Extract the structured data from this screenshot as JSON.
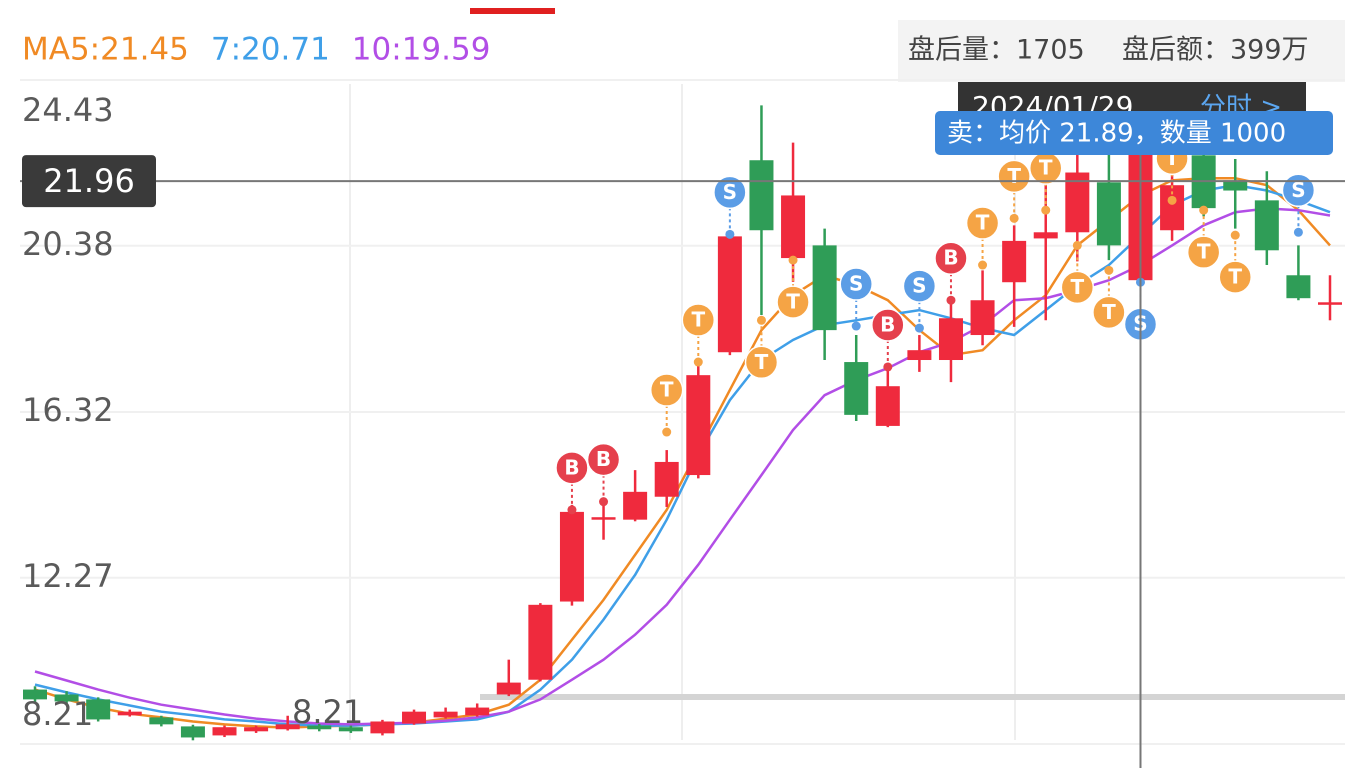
{
  "chart_data": {
    "type": "candlestick",
    "ylim": [
      8.21,
      24.43
    ],
    "yticks": [
      8.21,
      12.27,
      16.32,
      20.38,
      24.43
    ],
    "grid": true,
    "up_color": "#ef2a3d",
    "down_color": "#2f9d57",
    "open": [
      9.54,
      9.42,
      9.3,
      8.91,
      8.86,
      8.64,
      8.42,
      8.52,
      8.57,
      8.66,
      8.62,
      8.47,
      8.71,
      8.86,
      8.91,
      9.42,
      9.78,
      11.69,
      13.7,
      13.69,
      14.25,
      14.78,
      17.78,
      22.47,
      20.08,
      20.39,
      17.54,
      15.98,
      17.59,
      17.59,
      18.2,
      19.49,
      20.56,
      20.71,
      21.93,
      19.54,
      20.76,
      22.59,
      21.98,
      21.49,
      19.66,
      18.98
    ],
    "high": [
      9.62,
      9.5,
      9.35,
      9.05,
      8.9,
      8.68,
      8.66,
      8.66,
      8.9,
      8.7,
      8.66,
      8.8,
      9.05,
      9.1,
      9.2,
      10.27,
      11.65,
      14.05,
      14.13,
      14.9,
      15.39,
      17.46,
      20.71,
      23.81,
      22.9,
      20.8,
      18.2,
      17.46,
      18.2,
      19.05,
      19.78,
      20.88,
      22.71,
      22.71,
      22.71,
      23.32,
      22.4,
      23.0,
      22.5,
      22.2,
      20.39,
      19.66
    ],
    "low": [
      9.22,
      9.2,
      8.76,
      8.88,
      8.64,
      8.3,
      8.38,
      8.48,
      8.54,
      8.52,
      8.48,
      8.42,
      8.68,
      8.83,
      8.88,
      9.38,
      9.74,
      11.59,
      13.2,
      13.65,
      14.0,
      14.7,
      17.71,
      18.69,
      19.5,
      17.59,
      16.1,
      15.95,
      17.3,
      17.05,
      17.95,
      18.4,
      18.56,
      20.0,
      20.03,
      19.42,
      20.5,
      21.1,
      20.8,
      19.91,
      19.05,
      18.56
    ],
    "close": [
      9.3,
      9.25,
      8.81,
      9.0,
      8.69,
      8.37,
      8.62,
      8.62,
      8.69,
      8.57,
      8.52,
      8.76,
      9.0,
      9.0,
      9.1,
      9.71,
      11.61,
      13.88,
      13.75,
      14.37,
      15.1,
      17.22,
      20.61,
      20.76,
      21.61,
      18.32,
      16.25,
      16.95,
      17.83,
      18.61,
      19.05,
      20.5,
      20.71,
      22.17,
      20.39,
      23.2,
      21.86,
      21.3,
      21.73,
      20.27,
      19.1,
      19.0
    ],
    "series": [
      {
        "name": "MA5:21.45",
        "color": "#f08a24",
        "values": [
          9.54,
          9.3,
          9.1,
          8.95,
          8.86,
          8.76,
          8.69,
          8.64,
          8.61,
          8.64,
          8.66,
          8.69,
          8.73,
          8.83,
          8.93,
          9.17,
          9.78,
          10.76,
          11.73,
          12.83,
          13.93,
          15.39,
          16.86,
          18.32,
          19.17,
          19.66,
          19.42,
          19.05,
          18.32,
          17.71,
          17.83,
          18.56,
          19.17,
          20.39,
          21.0,
          21.61,
          21.98,
          22.03,
          22.03,
          21.86,
          21.25,
          20.39
        ]
      },
      {
        "name": "7:20.71",
        "color": "#3f9fe8",
        "values": [
          9.66,
          9.47,
          9.3,
          9.15,
          9.0,
          8.91,
          8.81,
          8.76,
          8.69,
          8.66,
          8.66,
          8.69,
          8.71,
          8.76,
          8.81,
          9.0,
          9.54,
          10.27,
          11.25,
          12.34,
          13.69,
          15.27,
          16.61,
          17.59,
          18.08,
          18.44,
          18.56,
          18.69,
          18.81,
          18.61,
          18.37,
          18.2,
          18.81,
          19.42,
          19.91,
          20.64,
          21.37,
          21.73,
          21.86,
          21.73,
          21.49,
          21.2
        ]
      },
      {
        "name": "10:19.59",
        "color": "#b24ee6",
        "values": [
          9.98,
          9.76,
          9.54,
          9.34,
          9.17,
          9.05,
          8.93,
          8.83,
          8.76,
          8.71,
          8.69,
          8.71,
          8.73,
          8.78,
          8.86,
          9.0,
          9.3,
          9.78,
          10.27,
          10.88,
          11.61,
          12.59,
          13.69,
          14.78,
          15.88,
          16.73,
          17.1,
          17.39,
          17.78,
          18.03,
          18.44,
          19.05,
          19.1,
          19.3,
          19.54,
          19.91,
          20.39,
          20.88,
          21.2,
          21.29,
          21.25,
          21.12
        ]
      }
    ],
    "signals": [
      null,
      null,
      null,
      null,
      null,
      null,
      null,
      null,
      null,
      null,
      null,
      null,
      null,
      null,
      null,
      null,
      null,
      "B",
      "B",
      null,
      "T",
      "T",
      "S",
      "T",
      "T",
      null,
      "S",
      "B",
      "S",
      "B",
      "T",
      "T",
      "T",
      "T",
      "T",
      "S",
      "T",
      "T",
      "T",
      null,
      "S",
      null
    ],
    "signal_prices": [
      null,
      null,
      null,
      null,
      null,
      null,
      null,
      null,
      null,
      null,
      null,
      null,
      null,
      null,
      null,
      null,
      null,
      13.93,
      14.13,
      null,
      15.83,
      17.54,
      20.66,
      18.56,
      20.03,
      null,
      18.42,
      17.42,
      18.37,
      19.05,
      19.91,
      21.05,
      21.25,
      20.39,
      19.78,
      19.49,
      21.49,
      21.25,
      20.64,
      null,
      20.71,
      null
    ],
    "signal_colors": {
      "B": "#e5404c",
      "S": "#5b9de6",
      "T": "#f5a445"
    },
    "crosshair_price": 21.96,
    "crosshair_date": "2024/01/29",
    "crosshair_link": "分时 >",
    "tooltip": "卖：均价 21.89，数量 1000",
    "low_label": 8.21,
    "after_hours": [
      "盘后量：1705",
      "盘后额：399万"
    ]
  }
}
